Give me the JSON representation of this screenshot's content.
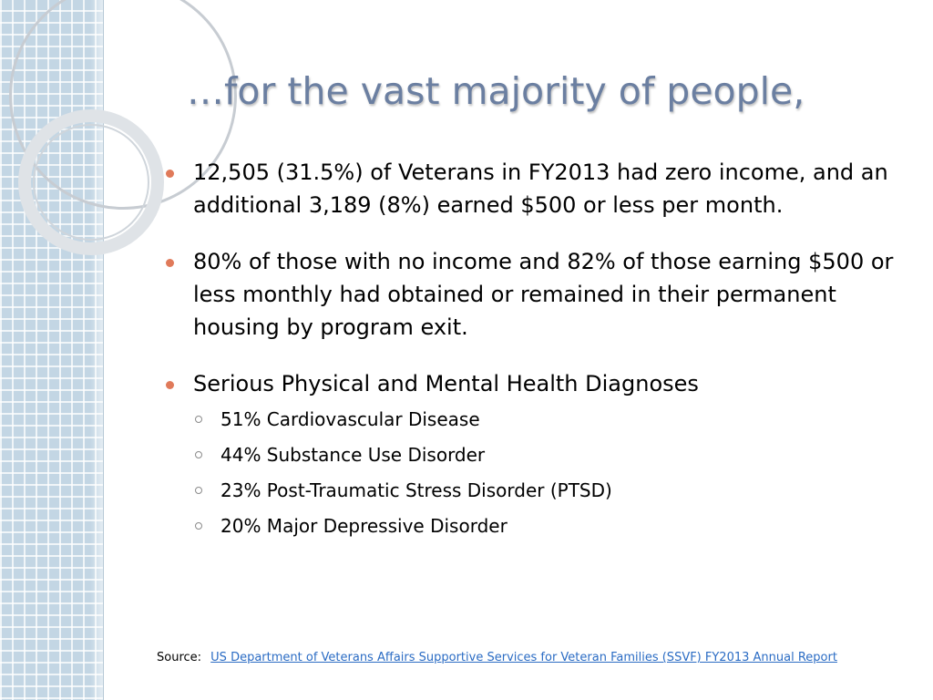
{
  "slide": {
    "title": "…for the vast majority of people,",
    "bullets": [
      {
        "text": "12,505 (31.5%) of Veterans in FY2013 had zero income, and an additional 3,189 (8%) earned $500 or less per month."
      },
      {
        "text": "80% of those with no income and 82% of those earning $500 or less monthly had obtained or remained in their permanent housing by program exit."
      },
      {
        "text": "Serious Physical and Mental Health Diagnoses",
        "subbullets": [
          "51% Cardiovascular Disease",
          "44% Substance Use Disorder",
          "23% Post-Traumatic Stress Disorder (PTSD)",
          "20% Major Depressive Disorder"
        ]
      }
    ],
    "source_label": "Source:",
    "source_link": "US Department of Veterans Affairs Supportive Services for Veteran Families (SSVF) FY2013 Annual Report"
  },
  "colors": {
    "title": "#6b7fa1",
    "bullet": "#e07a5a",
    "link": "#2b6cc4",
    "side_panel": "#c3d6e4"
  }
}
